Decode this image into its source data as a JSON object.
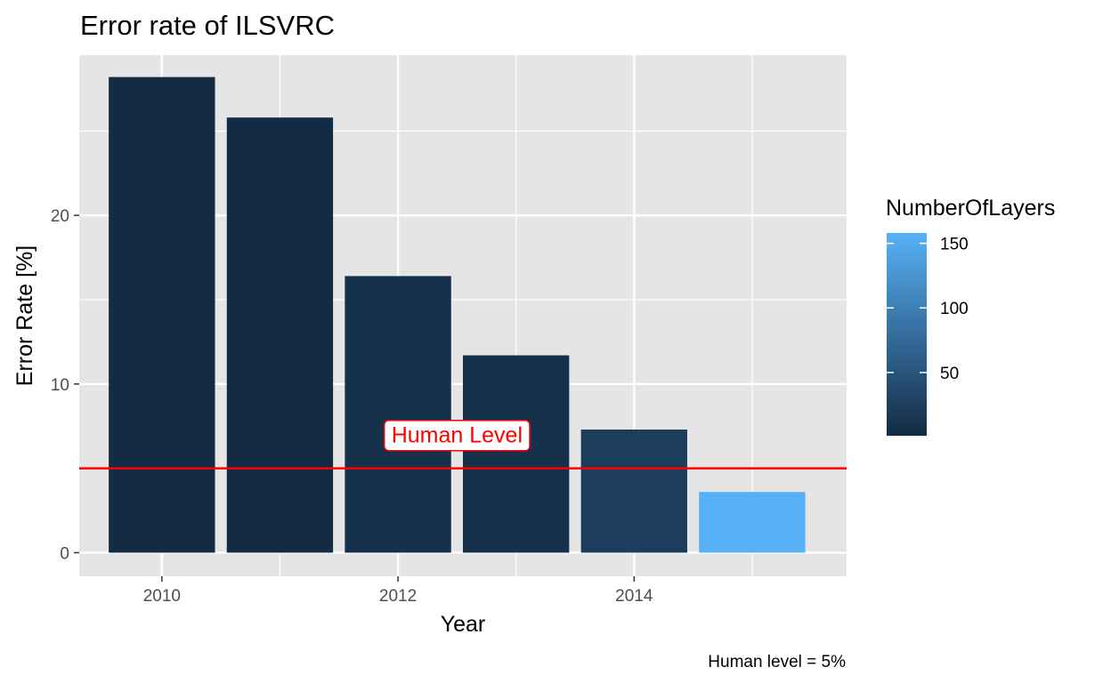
{
  "chart_data": {
    "type": "bar",
    "title": "Error rate of ILSVRC",
    "xlabel": "Year",
    "ylabel": "Error Rate [%]",
    "caption": "Human level = 5%",
    "categories": [
      2010,
      2011,
      2012,
      2013,
      2014,
      2015
    ],
    "values": [
      28.2,
      25.8,
      16.4,
      11.7,
      7.3,
      3.6
    ],
    "number_of_layers": [
      1,
      1,
      8,
      8,
      22,
      152
    ],
    "x_ticks": [
      2010,
      2012,
      2014
    ],
    "x_tick_labels": [
      "2010",
      "2012",
      "2014"
    ],
    "y_ticks": [
      0,
      10,
      20
    ],
    "y_tick_labels": [
      "0",
      "10",
      "20"
    ],
    "xlim": [
      2009.3,
      2015.8
    ],
    "ylim": [
      -1.4,
      29.5
    ],
    "grid": true,
    "reference_line": {
      "y": 5,
      "color": "#ff0000"
    },
    "annotation": {
      "text": "Human Level",
      "x": 2012.5,
      "y": 7
    },
    "legend": {
      "title": "NumberOfLayers",
      "placement": "right",
      "scale": "continuous",
      "range": [
        1,
        152
      ],
      "ticks": [
        50,
        100,
        150
      ],
      "tick_labels": [
        "50",
        "100",
        "150"
      ],
      "color_low": "#132b43",
      "color_high": "#56b1f7"
    },
    "colors": {
      "panel_background": "#e5e5e5",
      "grid": "#ffffff"
    }
  }
}
